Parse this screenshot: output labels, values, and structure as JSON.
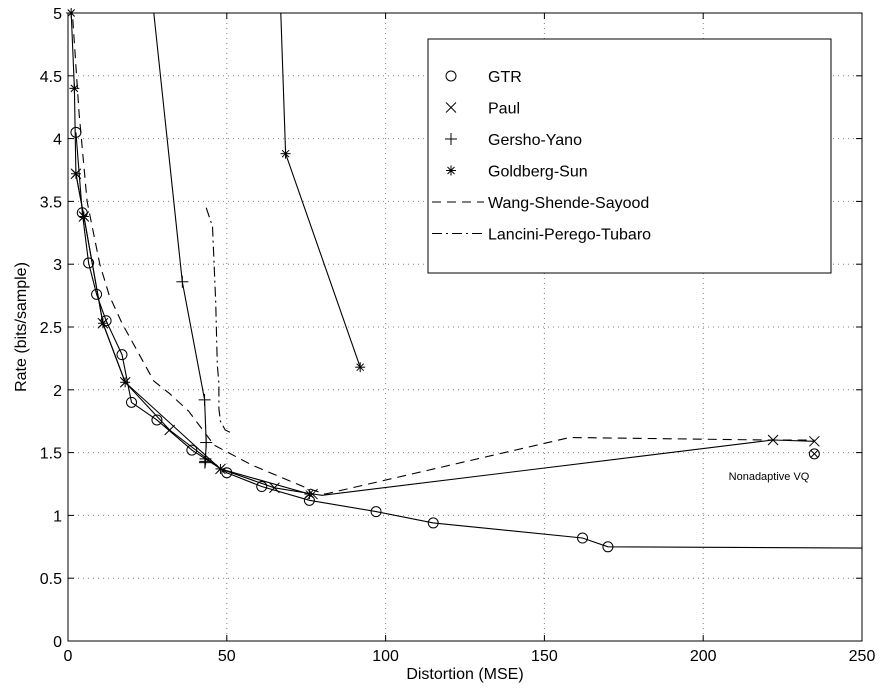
{
  "chart_data": {
    "type": "line",
    "xlabel": "Distortion (MSE)",
    "ylabel": "Rate (bits/sample)",
    "xlim": [
      0,
      250
    ],
    "ylim": [
      0,
      5
    ],
    "xticks": [
      0,
      50,
      100,
      150,
      200,
      250
    ],
    "yticks": [
      0,
      0.5,
      1,
      1.5,
      2,
      2.5,
      3,
      3.5,
      4,
      4.5,
      5
    ],
    "xtick_labels": [
      "0",
      "50",
      "100",
      "150",
      "200",
      "250"
    ],
    "ytick_labels": [
      "0",
      "0.5",
      "1",
      "1.5",
      "2",
      "2.5",
      "3",
      "3.5",
      "4",
      "4.5",
      "5"
    ],
    "grid": true,
    "legend_position": "top-right",
    "series": [
      {
        "name": "GTR",
        "marker": "circle",
        "line": "solid",
        "x": [
          2.5,
          4.5,
          6.5,
          9,
          12,
          17,
          20,
          28,
          39,
          50,
          61,
          76,
          97,
          115,
          162,
          170,
          250
        ],
        "y": [
          4.05,
          3.41,
          3.01,
          2.76,
          2.55,
          2.28,
          1.9,
          1.76,
          1.52,
          1.34,
          1.23,
          1.12,
          1.03,
          0.94,
          0.82,
          0.75,
          0.74
        ],
        "marked": [
          true,
          true,
          true,
          true,
          true,
          true,
          true,
          true,
          true,
          true,
          true,
          true,
          true,
          true,
          true,
          true,
          false
        ]
      },
      {
        "name": "Paul",
        "marker": "x",
        "line": "solid",
        "x": [
          2.5,
          5,
          11,
          18,
          32,
          48,
          65,
          77,
          80,
          222,
          235
        ],
        "y": [
          3.72,
          3.38,
          2.53,
          2.06,
          1.68,
          1.37,
          1.22,
          1.17,
          1.16,
          1.6,
          1.59
        ],
        "marked": [
          true,
          true,
          true,
          true,
          true,
          true,
          true,
          true,
          false,
          true,
          true
        ]
      },
      {
        "name": "Gersho-Yano",
        "marker": "plus",
        "line": "solid",
        "x": [
          27,
          36,
          43,
          43.5,
          43.3,
          43.2,
          43.1
        ],
        "y": [
          5.0,
          2.86,
          1.92,
          1.58,
          1.45,
          1.43,
          1.42
        ],
        "marked": [
          false,
          true,
          true,
          true,
          true,
          true,
          true
        ]
      },
      {
        "name": "Goldberg-Sun",
        "marker": "asterisk",
        "line": "solid",
        "x": [
          1,
          2,
          2.5,
          5,
          11,
          18,
          48,
          76,
          67,
          68.5,
          92
        ],
        "y": [
          5.0,
          4.4,
          3.72,
          3.38,
          2.53,
          2.06,
          1.37,
          1.17,
          5.0,
          3.88,
          2.18
        ],
        "segments": [
          [
            0,
            8
          ],
          [
            8,
            11
          ]
        ],
        "marked": [
          true,
          true,
          true,
          true,
          true,
          true,
          true,
          true,
          false,
          true,
          true
        ]
      },
      {
        "name": "Wang-Shende-Sayood",
        "marker": "none",
        "line": "dashed",
        "x": [
          1.5,
          3.5,
          6,
          10,
          13,
          17,
          22,
          27,
          32,
          38,
          46,
          58,
          75,
          81,
          158,
          220,
          235
        ],
        "y": [
          4.95,
          4.2,
          3.5,
          3.0,
          2.75,
          2.53,
          2.3,
          2.07,
          1.97,
          1.83,
          1.56,
          1.4,
          1.22,
          1.17,
          1.62,
          1.6,
          1.6
        ]
      },
      {
        "name": "Lancini-Perego-Tubaro",
        "marker": "none",
        "line": "dashdot",
        "x": [
          43.5,
          45.5,
          46.5,
          47,
          47.5,
          47.5,
          48,
          49.5,
          52
        ],
        "y": [
          3.45,
          3.3,
          2.7,
          2.2,
          2.05,
          1.85,
          1.75,
          1.68,
          1.65
        ]
      }
    ],
    "points": [
      {
        "label": "Nonadaptive VQ",
        "x": 235,
        "y": 1.49,
        "marker": "circle-x"
      }
    ]
  }
}
